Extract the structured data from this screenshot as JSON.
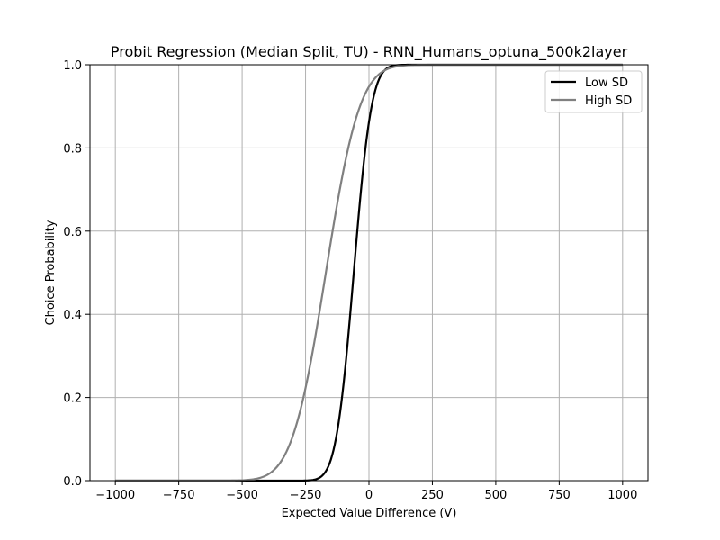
{
  "chart_data": {
    "type": "line",
    "title": "Probit Regression (Median Split, TU) - RNN_Humans_optuna_500k2layer",
    "xlabel": "Expected Value Difference (V)",
    "ylabel": "Choice Probability",
    "xlim": [
      -1100,
      1100
    ],
    "ylim": [
      0,
      1
    ],
    "xticks": [
      -1000,
      -750,
      -500,
      -250,
      0,
      250,
      500,
      750,
      1000
    ],
    "xtick_labels": [
      "−1000",
      "−750",
      "−500",
      "−250",
      "0",
      "250",
      "500",
      "750",
      "1000"
    ],
    "yticks": [
      0,
      0.2,
      0.4,
      0.6,
      0.8,
      1.0
    ],
    "ytick_labels": [
      "0.0",
      "0.2",
      "0.4",
      "0.6",
      "0.8",
      "1.0"
    ],
    "grid": true,
    "legend_position": "top-right",
    "x_range": [
      -1000,
      1000
    ],
    "series": [
      {
        "name": "Low SD",
        "color": "#000000",
        "probit": {
          "midpoint": -60,
          "sigma": 55
        }
      },
      {
        "name": "High SD",
        "color": "#808080",
        "probit": {
          "midpoint": -170,
          "sigma": 105
        }
      }
    ]
  }
}
